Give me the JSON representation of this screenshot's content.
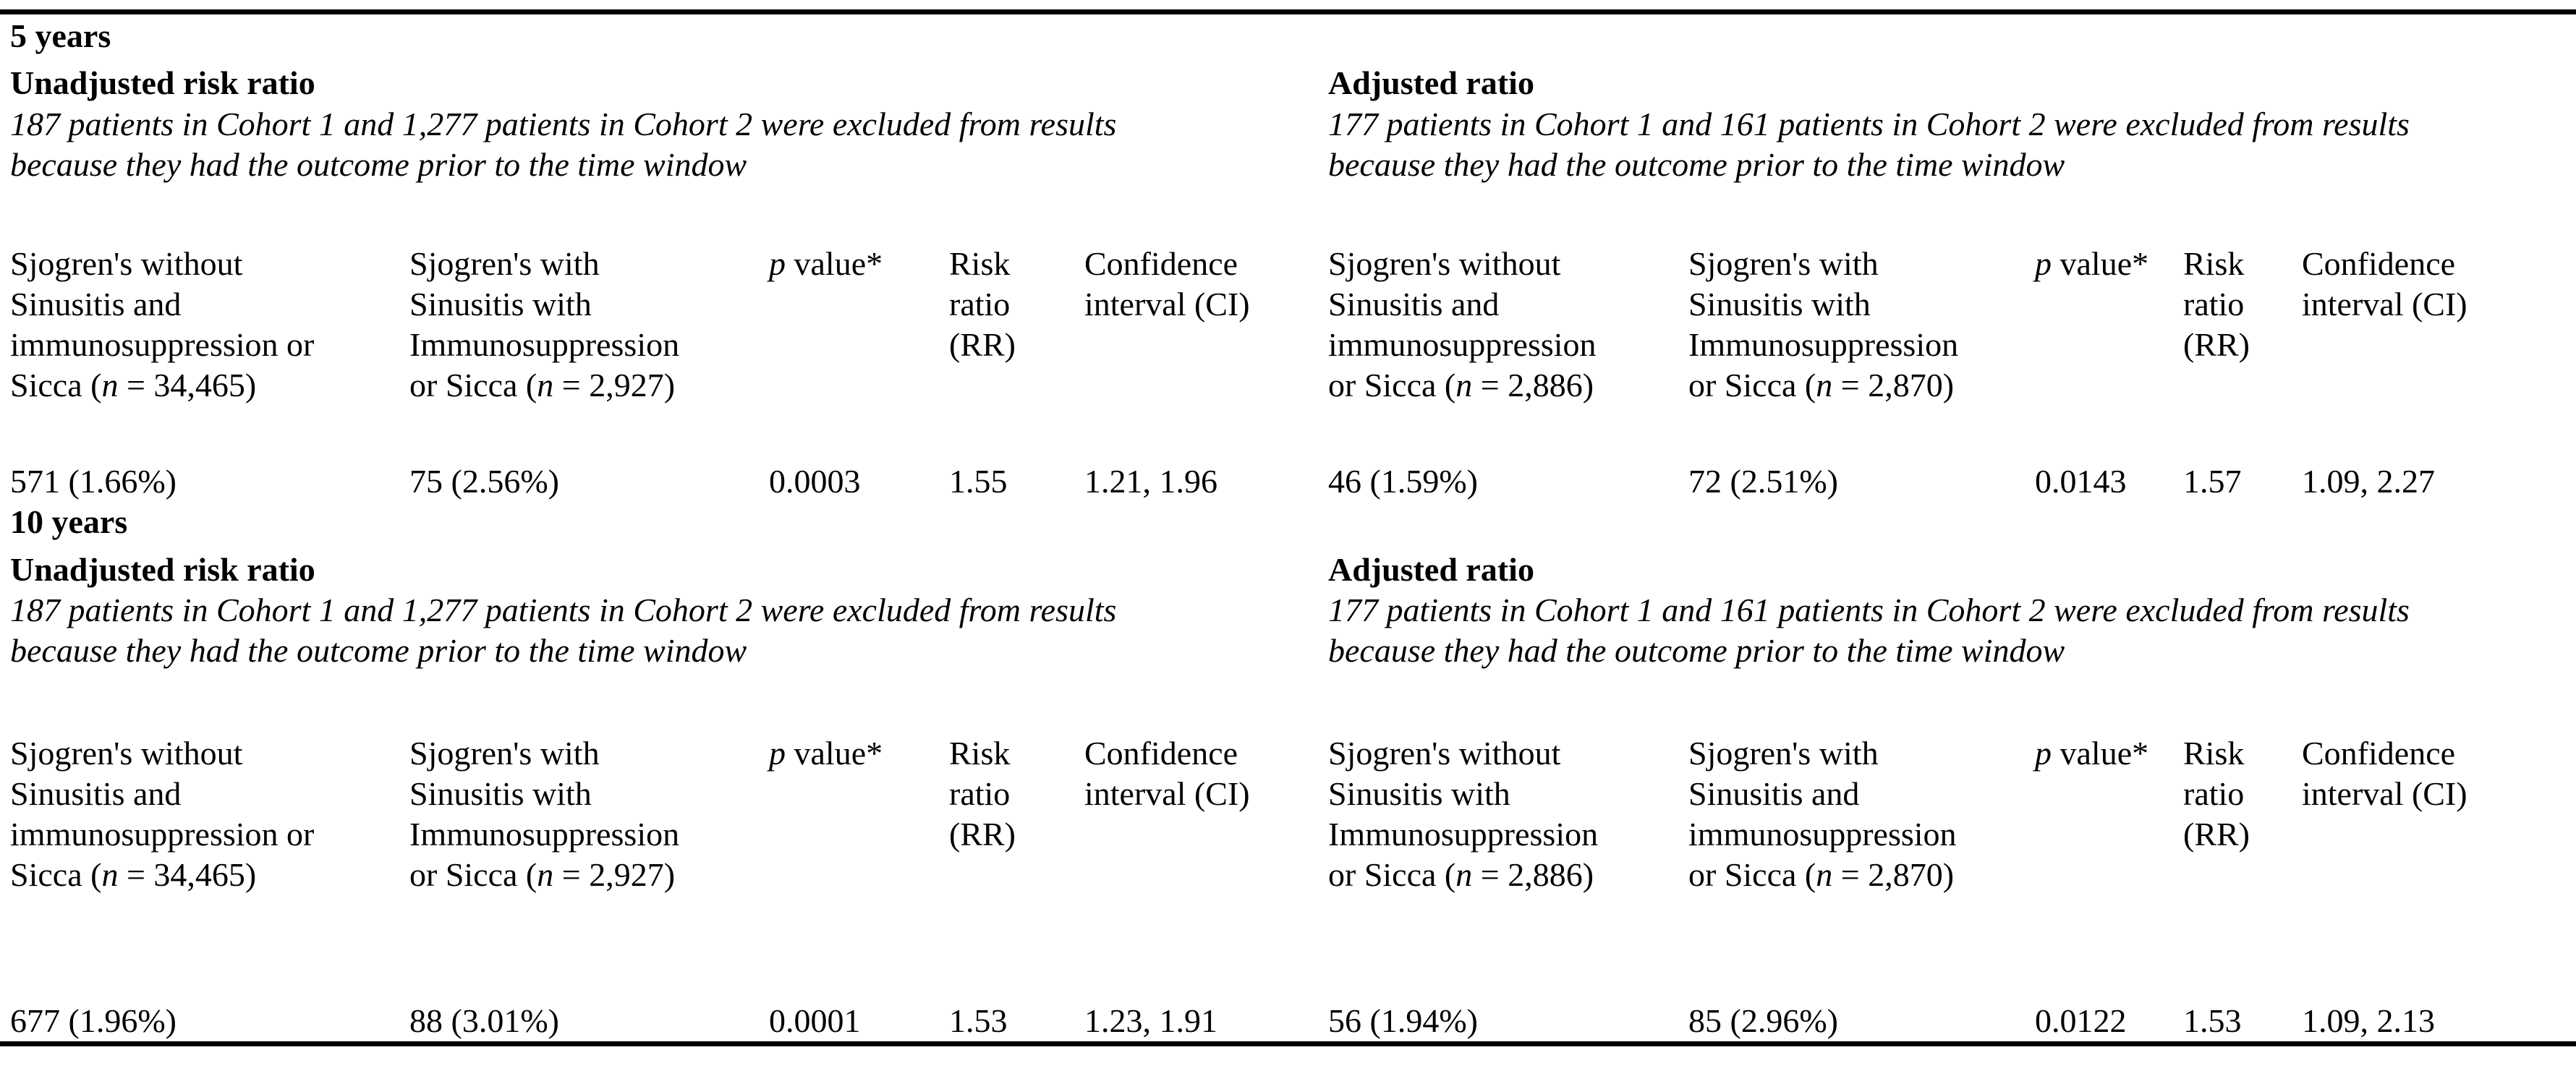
{
  "table": {
    "sections": [
      {
        "period": "5 years",
        "left": {
          "subtitle": "Unadjusted risk ratio",
          "note": "187 patients in Cohort 1 and 1,277 patients in Cohort 2 were excluded from results\nbecause they had the outcome prior to the time window",
          "headers": [
            {
              "pre": "Sjogren's without\nSinusitis and\nimmunosuppression or\nSicca (",
              "it": "n",
              "post": " = 34,465)"
            },
            {
              "pre": "Sjogren's with\nSinusitis with\nImmunosuppression\nor Sicca (",
              "it": "n",
              "post": " = 2,927)"
            },
            {
              "pre": "",
              "it": "p",
              "post": " value*"
            },
            {
              "pre": "Risk\nratio\n(RR)",
              "it": "",
              "post": ""
            },
            {
              "pre": "Confidence\ninterval (CI)",
              "it": "",
              "post": ""
            }
          ],
          "values": [
            "571 (1.66%)",
            "75 (2.56%)",
            "0.0003",
            "1.55",
            "1.21, 1.96"
          ]
        },
        "right": {
          "subtitle": "Adjusted ratio",
          "note": "177 patients in Cohort 1 and 161 patients in Cohort 2 were excluded from results\nbecause they had the outcome prior to the time window",
          "headers": [
            {
              "pre": "Sjogren's without\nSinusitis and\nimmunosuppression\nor Sicca (",
              "it": "n",
              "post": " = 2,886)"
            },
            {
              "pre": "Sjogren's with\nSinusitis with\nImmunosuppression\nor Sicca (",
              "it": "n",
              "post": " = 2,870)"
            },
            {
              "pre": "",
              "it": "p",
              "post": " value*"
            },
            {
              "pre": "Risk\nratio\n(RR)",
              "it": "",
              "post": ""
            },
            {
              "pre": "Confidence\ninterval (CI)",
              "it": "",
              "post": ""
            }
          ],
          "values": [
            "46 (1.59%)",
            "72 (2.51%)",
            "0.0143",
            "1.57",
            "1.09, 2.27"
          ]
        }
      },
      {
        "period": "10 years",
        "left": {
          "subtitle": "Unadjusted risk ratio",
          "note": "187 patients in Cohort 1 and 1,277 patients in Cohort 2 were excluded from results\nbecause they had the outcome prior to the time window",
          "headers": [
            {
              "pre": "Sjogren's without\nSinusitis and\nimmunosuppression or\nSicca (",
              "it": "n",
              "post": " = 34,465)"
            },
            {
              "pre": "Sjogren's with\nSinusitis with\nImmunosuppression\nor Sicca (",
              "it": "n",
              "post": " = 2,927)"
            },
            {
              "pre": "",
              "it": "p",
              "post": " value*"
            },
            {
              "pre": "Risk\nratio\n(RR)",
              "it": "",
              "post": ""
            },
            {
              "pre": "Confidence\ninterval (CI)",
              "it": "",
              "post": ""
            }
          ],
          "values": [
            "677 (1.96%)",
            "88 (3.01%)",
            "0.0001",
            "1.53",
            "1.23, 1.91"
          ]
        },
        "right": {
          "subtitle": "Adjusted ratio",
          "note": "177 patients in Cohort 1 and 161 patients in Cohort 2 were excluded from results\nbecause they had the outcome prior to the time window",
          "headers": [
            {
              "pre": "Sjogren's without\nSinusitis with\nImmunosuppression\nor Sicca (",
              "it": "n",
              "post": " = 2,886)"
            },
            {
              "pre": "Sjogren's with\nSinusitis and\nimmunosuppression\nor Sicca (",
              "it": "n",
              "post": " = 2,870)"
            },
            {
              "pre": "",
              "it": "p",
              "post": " value*"
            },
            {
              "pre": "Risk\nratio\n(RR)",
              "it": "",
              "post": ""
            },
            {
              "pre": "Confidence\ninterval (CI)",
              "it": "",
              "post": ""
            }
          ],
          "values": [
            "56 (1.94%)",
            "85 (2.96%)",
            "0.0122",
            "1.53",
            "1.09, 2.13"
          ]
        }
      }
    ]
  }
}
